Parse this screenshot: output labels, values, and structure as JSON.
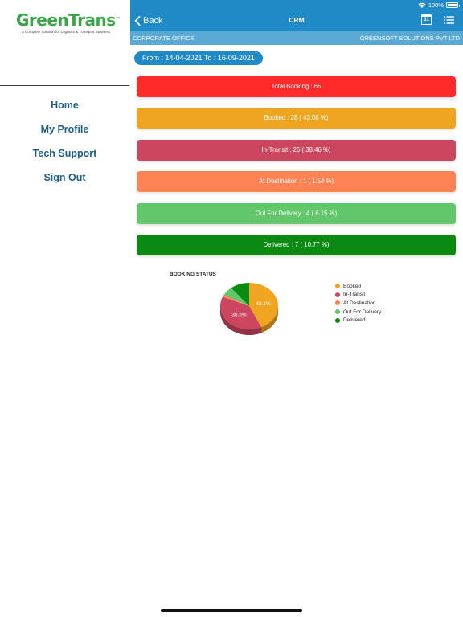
{
  "sidebar": {
    "logo": {
      "brand": "GreenTrans",
      "trademark": "™",
      "tagline": "A Complete Solution for Logistics & Transport Business"
    },
    "items": [
      {
        "label": "Home"
      },
      {
        "label": "My Profile"
      },
      {
        "label": "Tech Support"
      },
      {
        "label": "Sign Out"
      }
    ]
  },
  "status_bar": {
    "battery": "100%",
    "icons": [
      "wifi-icon",
      "battery-icon"
    ]
  },
  "navbar": {
    "back_label": "Back",
    "title": "CRM",
    "calendar_day": "31",
    "icons": [
      "chevron-left-icon",
      "calendar-icon",
      "list-icon"
    ]
  },
  "subheader": {
    "office": "CORPORATE OFFICE",
    "company": "GREENSOFT SOLUTIONS PVT LTD"
  },
  "date_range": "From : 14-04-2021 To : 16-09-2021",
  "cards": {
    "total": "Total Booking : 65",
    "booked": "Booked : 28 ( 43.08 %)",
    "intransit": "In-Transit : 25 ( 38.46 %)",
    "destination": "At Destination : 1 ( 1.54 %)",
    "outdelivery": "Out For Delivery : 4 ( 6.15 %)",
    "delivered": "Delivered : 7 ( 10.77 %)"
  },
  "colors": {
    "primary": "#1f8ac6",
    "total": "#ff2b2b",
    "booked": "#f0a521",
    "intransit": "#cc4660",
    "destination": "#ff8355",
    "outdelivery": "#62c66a",
    "delivered": "#0a8a10"
  },
  "chart_data": {
    "type": "pie",
    "title": "BOOKING STATUS",
    "categories": [
      "Booked",
      "In-Transit",
      "At Destination",
      "Out For Delivery",
      "Delivered"
    ],
    "values": [
      28,
      25,
      1,
      4,
      7
    ],
    "slice_labels": [
      "43.1%",
      "38.5%",
      "",
      "",
      ""
    ],
    "colors": [
      "#f0a521",
      "#cc4660",
      "#ff8355",
      "#62c66a",
      "#0a8a10"
    ],
    "legend": "right"
  }
}
